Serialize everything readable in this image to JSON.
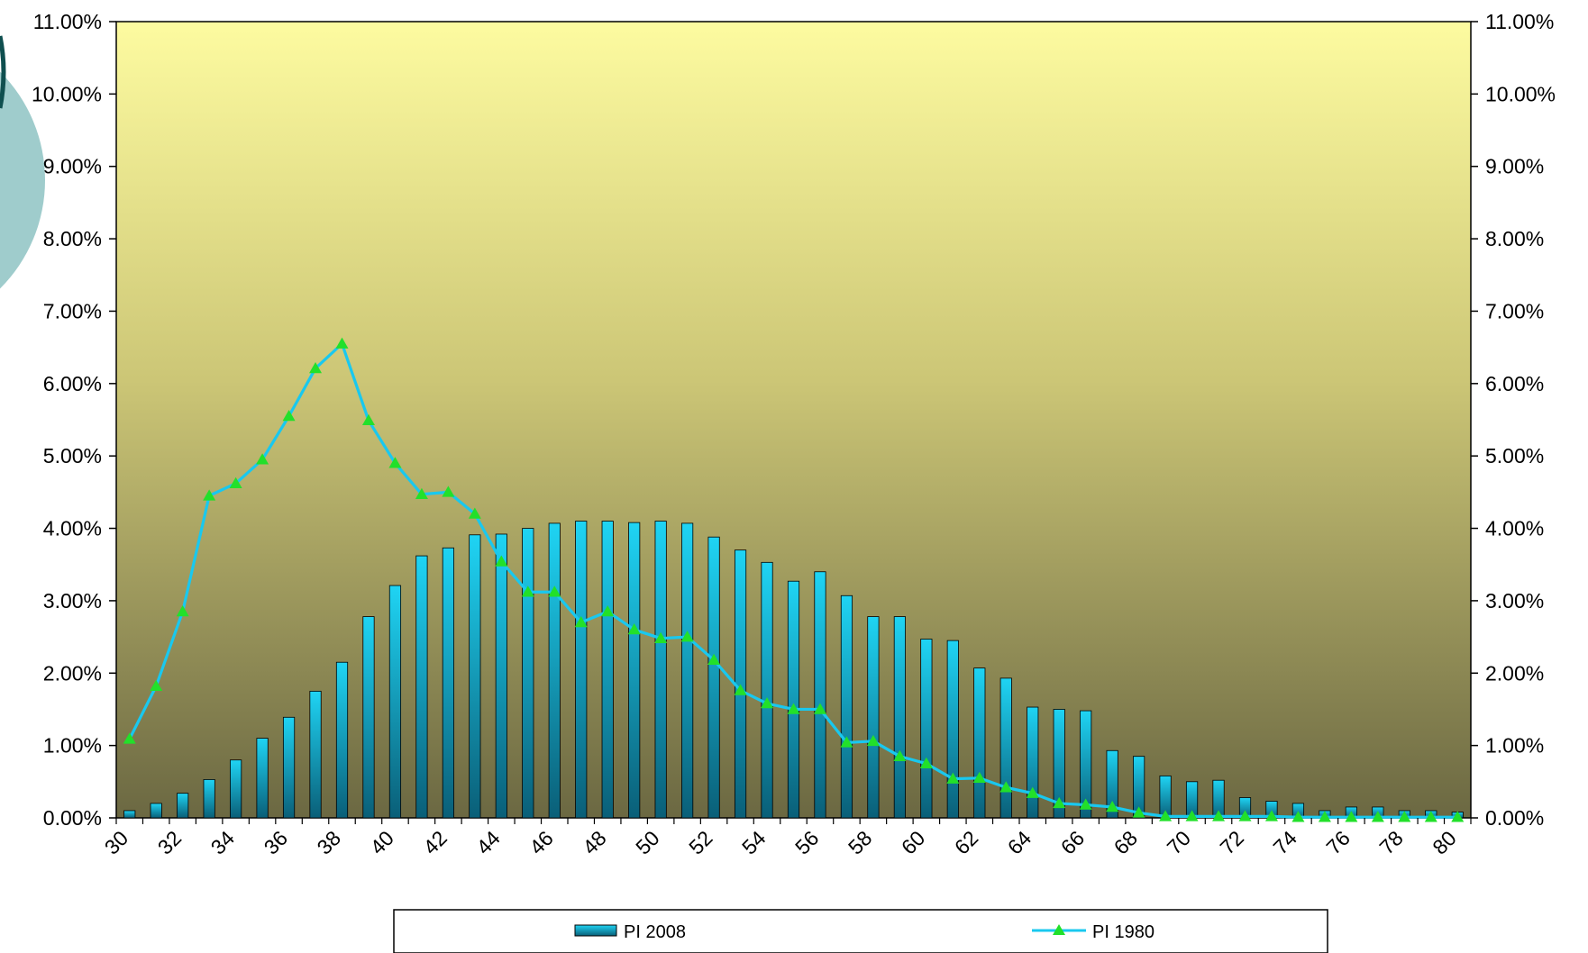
{
  "chart_data": {
    "type": "bar",
    "title": "",
    "xlabel": "",
    "ylabel": "",
    "ylim": [
      0,
      0.11
    ],
    "y_tick_labels": [
      "0.00%",
      "1.00%",
      "2.00%",
      "3.00%",
      "4.00%",
      "5.00%",
      "6.00%",
      "7.00%",
      "8.00%",
      "9.00%",
      "10.00%",
      "11.00%"
    ],
    "secondary_y_tick_labels": [
      "0.00%",
      "1.00%",
      "2.00%",
      "3.00%",
      "4.00%",
      "5.00%",
      "6.00%",
      "7.00%",
      "8.00%",
      "9.00%",
      "10.00%",
      "11.00%"
    ],
    "x": [
      30,
      31,
      32,
      33,
      34,
      35,
      36,
      37,
      38,
      39,
      40,
      41,
      42,
      43,
      44,
      45,
      46,
      47,
      48,
      49,
      50,
      51,
      52,
      53,
      54,
      55,
      56,
      57,
      58,
      59,
      60,
      61,
      62,
      63,
      64,
      65,
      66,
      67,
      68,
      69,
      70,
      71,
      72,
      73,
      74,
      75,
      76,
      77,
      78,
      79,
      80
    ],
    "x_tick_labels": [
      "30",
      "32",
      "34",
      "36",
      "38",
      "40",
      "42",
      "44",
      "46",
      "48",
      "50",
      "52",
      "54",
      "56",
      "58",
      "60",
      "62",
      "64",
      "66",
      "68",
      "70",
      "72",
      "74",
      "76",
      "78",
      "80"
    ],
    "grid": false,
    "legend_position": "bottom",
    "series": [
      {
        "name": "PI 2008",
        "type": "bar",
        "color": "#19c8ef",
        "values": [
          0.001,
          0.002,
          0.0034,
          0.0053,
          0.008,
          0.011,
          0.0139,
          0.0175,
          0.0215,
          0.0278,
          0.0321,
          0.0362,
          0.0373,
          0.0391,
          0.0392,
          0.04,
          0.0407,
          0.041,
          0.041,
          0.0408,
          0.041,
          0.0407,
          0.0388,
          0.037,
          0.0353,
          0.0327,
          0.034,
          0.0307,
          0.0278,
          0.0278,
          0.0247,
          0.0245,
          0.0207,
          0.0193,
          0.0153,
          0.015,
          0.0148,
          0.0093,
          0.0085,
          0.0058,
          0.005,
          0.0052,
          0.0028,
          0.0023,
          0.002,
          0.001,
          0.0015,
          0.0015,
          0.001,
          0.001,
          0.0008
        ]
      },
      {
        "name": "PI 1980",
        "type": "line",
        "color": "#19c8ef",
        "marker_color": "#22e02a",
        "marker": "triangle",
        "values": [
          0.0109,
          0.0182,
          0.0285,
          0.0445,
          0.0462,
          0.0495,
          0.0555,
          0.0621,
          0.0655,
          0.0549,
          0.049,
          0.0447,
          0.045,
          0.042,
          0.0354,
          0.0312,
          0.0312,
          0.027,
          0.0285,
          0.026,
          0.0248,
          0.025,
          0.0218,
          0.0176,
          0.0158,
          0.015,
          0.015,
          0.0104,
          0.0106,
          0.0085,
          0.0075,
          0.0054,
          0.0055,
          0.0042,
          0.0034,
          0.002,
          0.0018,
          0.0015,
          0.0007,
          0.0002,
          0.0002,
          0.0002,
          0.0002,
          0.0002,
          0.0001,
          0.0001,
          0.0001,
          0.0001,
          0.0001,
          0.0001,
          0.0001
        ]
      }
    ],
    "colors": {
      "plot_gradient_top": "#fdfba0",
      "plot_gradient_mid": "#ccc676",
      "plot_gradient_bottom": "#6b6842",
      "bar_light": "#1fd4f4",
      "bar_dark": "#0a5f78",
      "decor_circle": "#9fcccc",
      "decor_arc": "#0f4f4f"
    }
  }
}
